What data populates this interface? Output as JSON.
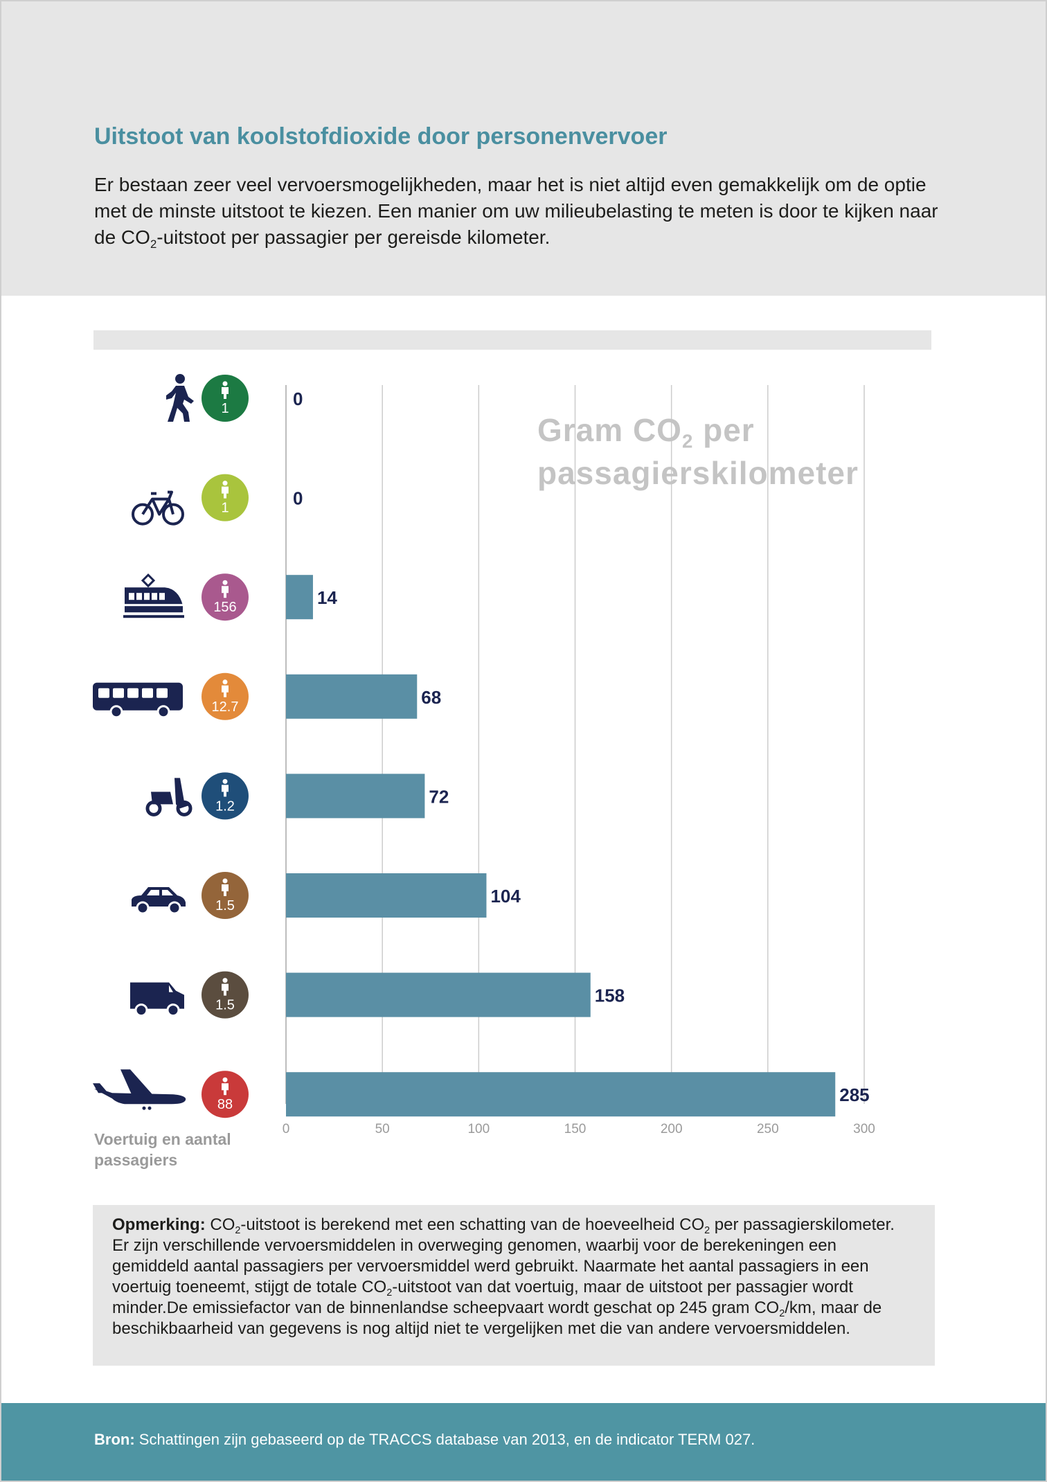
{
  "header": {
    "title": "Uitstoot van koolstofdioxide door personenvervoer",
    "intro_part1": "Er bestaan zeer veel vervoersmogelijkheden, maar het is niet altijd even gemakkelijk om de optie met de minste uitstoot te kiezen. Een manier om uw milieubelasting te meten is door te kijken naar de CO",
    "intro_sub": "2",
    "intro_part2": "-uitstoot per passagier per gereisde kilometer."
  },
  "chart_data": {
    "type": "bar",
    "orientation": "horizontal",
    "title_part1": "Gram CO",
    "title_sub": "2",
    "title_part2": " per",
    "title_line2": "passagierskilometer",
    "ylabel": "Voertuig en aantal passagiers",
    "xlim": [
      0,
      300
    ],
    "xticks": [
      "0",
      "50",
      "100",
      "150",
      "200",
      "250",
      "300"
    ],
    "grid": true,
    "categories": [
      {
        "icon": "walking-icon",
        "passengers": "1",
        "badge_color": "#1c7a43",
        "value": 0
      },
      {
        "icon": "bicycle-icon",
        "passengers": "1",
        "badge_color": "#a9c43d",
        "value": 0
      },
      {
        "icon": "train-icon",
        "passengers": "156",
        "badge_color": "#a9598e",
        "value": 14
      },
      {
        "icon": "bus-icon",
        "passengers": "12.7",
        "badge_color": "#e38a3a",
        "value": 68
      },
      {
        "icon": "scooter-icon",
        "passengers": "1.2",
        "badge_color": "#1f4e79",
        "value": 72
      },
      {
        "icon": "car-icon",
        "passengers": "1.5",
        "badge_color": "#94653a",
        "value": 104
      },
      {
        "icon": "van-icon",
        "passengers": "1.5",
        "badge_color": "#5b4d3f",
        "value": 158
      },
      {
        "icon": "airplane-icon",
        "passengers": "88",
        "badge_color": "#c93a3a",
        "value": 285
      }
    ],
    "bar_color": "#5a8fa5",
    "label_color": "#1b2450",
    "icon_color": "#1b2450"
  },
  "note": {
    "label": "Opmerking:",
    "parts": [
      " CO",
      "2",
      "-uitstoot is berekend met een schatting van de hoeveelheid CO",
      "2",
      " per passagierskilometer. Er zijn verschillende vervoersmiddelen in overweging genomen, waarbij voor de berekeningen een gemiddeld aantal passagiers per vervoersmiddel werd gebruikt. Naarmate het aantal passagiers in een voertuig toeneemt, stijgt de totale CO",
      "2",
      "-uitstoot van dat voertuig, maar de uitstoot per passagier wordt minder.De emissiefactor van de binnenlandse scheepvaart wordt geschat op 245 gram CO",
      "2",
      "/km, maar de beschikbaarheid van gegevens is nog altijd niet te vergelijken met die van andere vervoersmiddelen."
    ]
  },
  "footer": {
    "label": "Bron:",
    "text": " Schattingen zijn gebaseerd op de TRACCS database van 2013, en de indicator TERM 027."
  }
}
